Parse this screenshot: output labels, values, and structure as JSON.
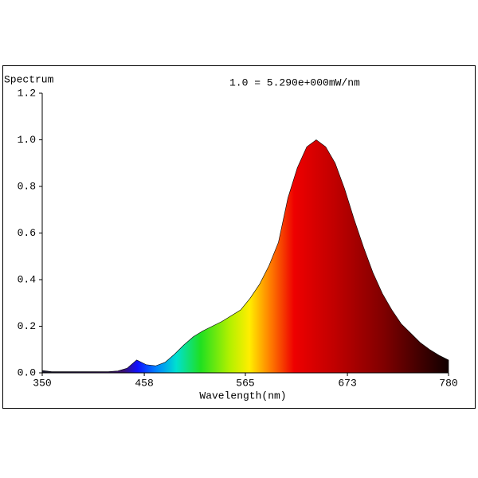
{
  "chart_data": {
    "type": "area",
    "title": "Spectrum",
    "subtitle": "1.0 = 5.290e+000mW/nm",
    "x_label": "Wavelength(nm)",
    "x": [
      350,
      360,
      370,
      380,
      390,
      400,
      410,
      420,
      430,
      440,
      450,
      460,
      470,
      480,
      490,
      500,
      510,
      520,
      530,
      540,
      550,
      560,
      570,
      580,
      590,
      600,
      610,
      620,
      630,
      640,
      650,
      660,
      670,
      680,
      690,
      700,
      710,
      720,
      730,
      740,
      750,
      760,
      770,
      780
    ],
    "values": [
      0.01,
      0.005,
      0.005,
      0.005,
      0.005,
      0.005,
      0.005,
      0.005,
      0.008,
      0.02,
      0.055,
      0.035,
      0.03,
      0.045,
      0.08,
      0.12,
      0.155,
      0.18,
      0.2,
      0.22,
      0.245,
      0.27,
      0.32,
      0.38,
      0.46,
      0.56,
      0.75,
      0.88,
      0.97,
      1.0,
      0.97,
      0.9,
      0.79,
      0.66,
      0.54,
      0.43,
      0.34,
      0.27,
      0.21,
      0.17,
      0.13,
      0.1,
      0.075,
      0.055
    ],
    "xlim": [
      350,
      780
    ],
    "xticks": [
      350,
      458,
      565,
      673,
      780
    ],
    "ylim": [
      0,
      1.2
    ],
    "yticks": [
      {
        "value": 0,
        "label": "0.0"
      },
      0.2,
      0.4,
      0.6,
      0.8,
      {
        "value": 1,
        "label": "1.0"
      },
      1.2
    ]
  }
}
